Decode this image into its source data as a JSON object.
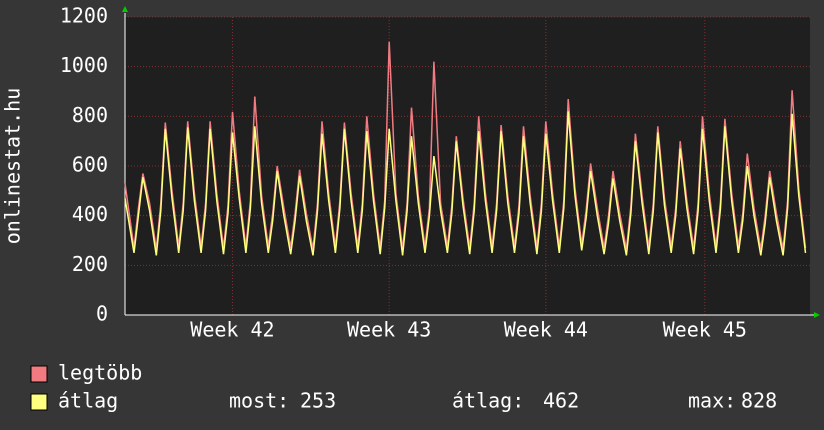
{
  "chart_data": {
    "type": "line",
    "y_label": "onlinestat.hu",
    "x": [
      0,
      0.4,
      0.6,
      0.8,
      1.1,
      1.4,
      1.6,
      1.8,
      2.1,
      2.4,
      2.6,
      2.8,
      3.1,
      3.4,
      3.6,
      3.8,
      4.1,
      4.4,
      4.6,
      4.8,
      5.1,
      5.4,
      5.6,
      5.8,
      6.1,
      6.4,
      6.6,
      6.8,
      7.1,
      7.4,
      7.6,
      7.8,
      8.1,
      8.4,
      8.6,
      8.8,
      9.1,
      9.4,
      9.6,
      9.8,
      10.1,
      10.4,
      10.6,
      10.8,
      11.1,
      11.4,
      11.6,
      11.8,
      12.1,
      12.4,
      12.6,
      12.8,
      13.1,
      13.4,
      13.6,
      13.8,
      14.1,
      14.4,
      14.6,
      14.8,
      15.1,
      15.4,
      15.6,
      15.8,
      16.1,
      16.4,
      16.6,
      16.8,
      17.1,
      17.4,
      17.6,
      17.8,
      18.1,
      18.4,
      18.6,
      18.8,
      19.1,
      19.4,
      19.6,
      19.8,
      20.1,
      20.4,
      20.6,
      20.8,
      21.1,
      21.4,
      21.6,
      21.8,
      22.1,
      22.4,
      22.6,
      22.8,
      23.1,
      23.4,
      23.6,
      23.8,
      24.1,
      24.4,
      24.6,
      24.8,
      25.1,
      25.4,
      25.6,
      25.8,
      26.1,
      26.4,
      26.6,
      26.8,
      27.1,
      27.4,
      27.6,
      27.8,
      28.1,
      28.4,
      28.6,
      28.8,
      29.1,
      29.4,
      29.6,
      29.8,
      30.1,
      30.4
    ],
    "series": [
      {
        "name": "legtöbb",
        "color": "#f27b82",
        "values": [
          530,
          270,
          430,
          570,
          450,
          265,
          450,
          775,
          500,
          275,
          450,
          780,
          490,
          275,
          450,
          780,
          490,
          270,
          440,
          818,
          500,
          275,
          460,
          880,
          480,
          275,
          410,
          600,
          430,
          270,
          410,
          585,
          410,
          265,
          450,
          780,
          490,
          275,
          460,
          775,
          490,
          275,
          450,
          800,
          490,
          270,
          460,
          1100,
          490,
          265,
          450,
          835,
          480,
          275,
          430,
          1020,
          450,
          275,
          440,
          720,
          470,
          270,
          450,
          800,
          490,
          275,
          450,
          765,
          480,
          275,
          440,
          760,
          480,
          270,
          450,
          780,
          490,
          275,
          460,
          870,
          510,
          285,
          420,
          610,
          430,
          270,
          400,
          580,
          410,
          265,
          440,
          730,
          480,
          270,
          450,
          760,
          470,
          275,
          430,
          700,
          460,
          270,
          450,
          800,
          490,
          275,
          460,
          790,
          490,
          275,
          410,
          650,
          430,
          265,
          400,
          580,
          410,
          265,
          460,
          905,
          510,
          270
        ]
      },
      {
        "name": "átlag",
        "color": "#ffff80",
        "values": [
          470,
          250,
          400,
          555,
          420,
          240,
          420,
          750,
          470,
          250,
          420,
          755,
          460,
          250,
          420,
          750,
          460,
          245,
          410,
          735,
          470,
          250,
          430,
          760,
          450,
          250,
          380,
          580,
          400,
          245,
          380,
          560,
          380,
          240,
          420,
          730,
          460,
          250,
          430,
          750,
          460,
          250,
          420,
          740,
          460,
          245,
          430,
          750,
          460,
          240,
          420,
          720,
          450,
          250,
          400,
          640,
          420,
          250,
          410,
          700,
          440,
          245,
          420,
          740,
          460,
          250,
          420,
          740,
          450,
          250,
          410,
          720,
          450,
          245,
          420,
          730,
          460,
          250,
          430,
          820,
          480,
          260,
          390,
          580,
          400,
          245,
          370,
          550,
          380,
          240,
          410,
          700,
          450,
          245,
          420,
          735,
          440,
          250,
          400,
          670,
          430,
          245,
          420,
          750,
          460,
          250,
          430,
          760,
          460,
          250,
          380,
          600,
          400,
          240,
          370,
          555,
          380,
          240,
          430,
          810,
          480,
          250
        ]
      }
    ],
    "xlim": [
      0,
      30.6
    ],
    "xticks": [
      {
        "value": 4.8,
        "label": "Week 42"
      },
      {
        "value": 11.8,
        "label": "Week 43"
      },
      {
        "value": 18.8,
        "label": "Week 44"
      },
      {
        "value": 25.9,
        "label": "Week 45"
      }
    ],
    "ylim": [
      0,
      1200
    ],
    "yticks": [
      0,
      200,
      400,
      600,
      800,
      1000,
      1200
    ],
    "grid": true,
    "stats": [
      {
        "label": "most:",
        "value": 253
      },
      {
        "label": "átlag:",
        "value": 462
      },
      {
        "label": "max:",
        "value": 828
      }
    ]
  }
}
